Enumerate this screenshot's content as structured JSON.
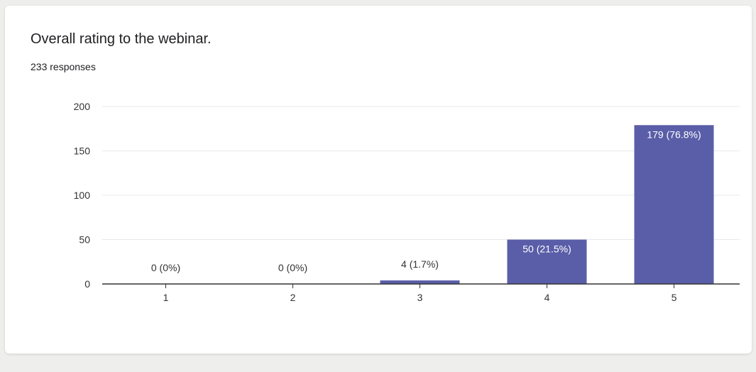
{
  "card": {
    "title": "Overall rating to the webinar.",
    "responses_label": "233 responses"
  },
  "colors": {
    "bar": "#5a5ea8",
    "gridline": "#e8e8ee",
    "axis": "#333333",
    "inside_label": "#ffffff",
    "outside_label": "#333333"
  },
  "chart_data": {
    "type": "bar",
    "categories": [
      "1",
      "2",
      "3",
      "4",
      "5"
    ],
    "values": [
      0,
      0,
      4,
      50,
      179
    ],
    "data_labels": [
      "0 (0%)",
      "0 (0%)",
      "4 (1.7%)",
      "50 (21.5%)",
      "179 (76.8%)"
    ],
    "yticks": [
      0,
      50,
      100,
      150,
      200
    ],
    "ylim": [
      0,
      200
    ],
    "grid": true,
    "legend": "none"
  }
}
